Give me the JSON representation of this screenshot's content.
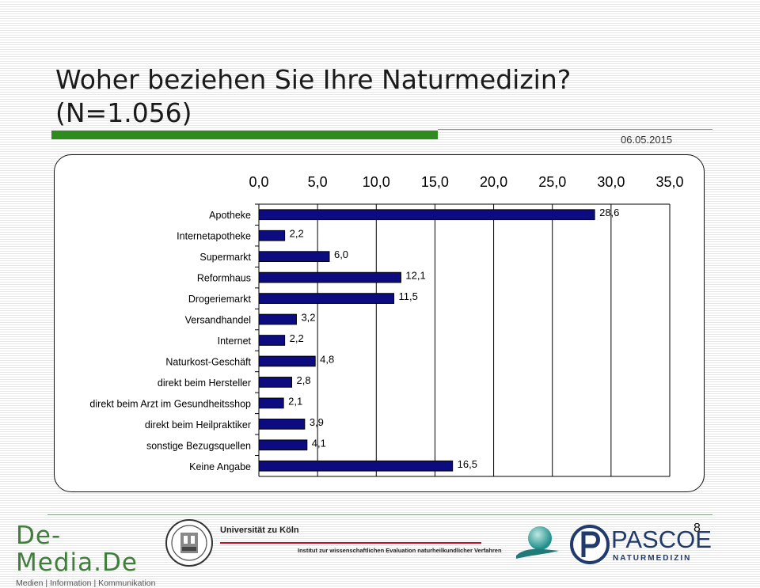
{
  "slide": {
    "title_line1": "Woher beziehen Sie Ihre Naturmedizin?",
    "title_line2": "(N=1.056)",
    "date": "06.05.2015",
    "page_number": "8",
    "accent_color": "#2e8b1e"
  },
  "logos": {
    "demedia_name": "De-Media.De",
    "demedia_tagline": "Medien | Information | Kommunikation",
    "university_name": "Universität zu Köln",
    "institute_name": "Institut zur wissenschaftlichen Evaluation naturheilkundlicher Verfahren",
    "pascoe_name": "PASCOE",
    "pascoe_sub": "NATURMEDIZIN"
  },
  "chart_data": {
    "type": "bar",
    "orientation": "horizontal",
    "title": "",
    "xlabel": "",
    "ylabel": "",
    "xlim": [
      0,
      35
    ],
    "x_ticks": [
      "0,0",
      "5,0",
      "10,0",
      "15,0",
      "20,0",
      "25,0",
      "30,0",
      "35,0"
    ],
    "x_axis_position": "top",
    "grid": true,
    "bar_color": "#0c0c80",
    "categories": [
      "Apotheke",
      "Internetapotheke",
      "Supermarkt",
      "Reformhaus",
      "Drogeriemarkt",
      "Versandhandel",
      "Internet",
      "Naturkost-Geschäft",
      "direkt beim Hersteller",
      "direkt beim Arzt im Gesundheitsshop",
      "direkt beim Heilpraktiker",
      "sonstige Bezugsquellen",
      "Keine Angabe"
    ],
    "values": [
      28.6,
      2.2,
      6.0,
      12.1,
      11.5,
      3.2,
      2.2,
      4.8,
      2.8,
      2.1,
      3.9,
      4.1,
      16.5
    ],
    "value_labels": [
      "28,6",
      "2,2",
      "6,0",
      "12,1",
      "11,5",
      "3,2",
      "2,2",
      "4,8",
      "2,8",
      "2,1",
      "3,9",
      "4,1",
      "16,5"
    ]
  }
}
